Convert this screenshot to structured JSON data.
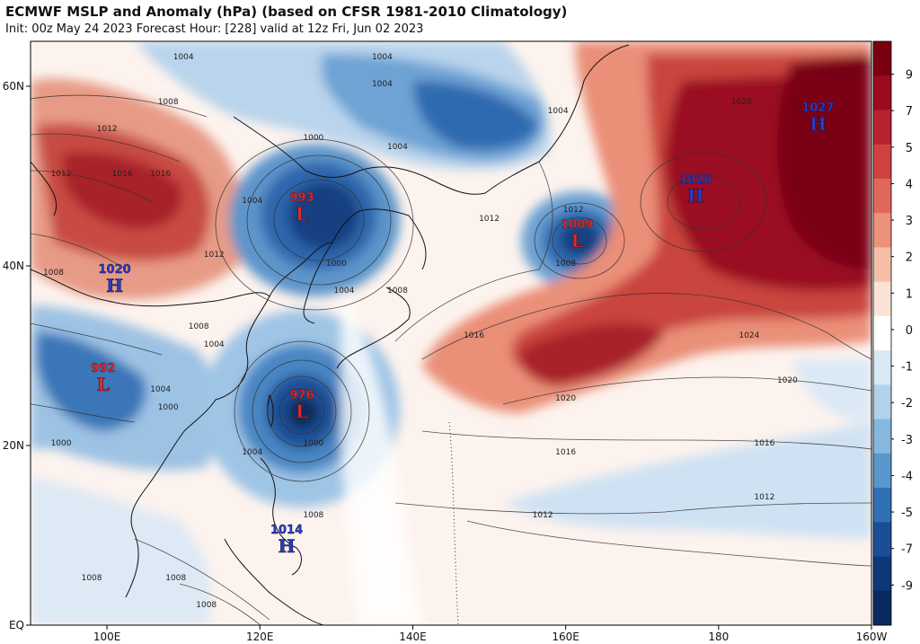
{
  "header": {
    "title": "ECMWF MSLP and Anomaly (hPa) (based on CFSR 1981-2010 Climatology)",
    "subtitle": "Init: 00z May 24 2023   Forecast Hour: [228]   valid at 12z Fri, Jun 02 2023"
  },
  "axes": {
    "lat_labels": [
      "60N",
      "40N",
      "20N",
      "EQ"
    ],
    "lat_values": [
      60,
      40,
      20,
      0
    ],
    "lon_labels": [
      "100E",
      "120E",
      "140E",
      "160E",
      "180",
      "160W"
    ],
    "lon_values": [
      100,
      120,
      140,
      160,
      180,
      200
    ],
    "lon_range": [
      90,
      200
    ],
    "lat_range": [
      0,
      65
    ]
  },
  "colorbar": {
    "labels": [
      "9",
      "7",
      "5",
      "4",
      "3",
      "2",
      "1",
      "0",
      "-1",
      "-2",
      "-3",
      "-4",
      "-5",
      "-7",
      "-9"
    ],
    "colors": [
      "#7a0012",
      "#9b0a1e",
      "#b8222e",
      "#cf4240",
      "#e0685a",
      "#ec9279",
      "#f5bea6",
      "#fbe2d6",
      "#ffffff",
      "#d9e8f5",
      "#b3d1ea",
      "#86b7de",
      "#5896cc",
      "#3170b5",
      "#1a4f96",
      "#0e3878",
      "#082a60"
    ]
  },
  "pressure_systems": [
    {
      "type": "L",
      "value": "993",
      "lon": 125.5,
      "lat": 46
    },
    {
      "type": "L",
      "value": "976",
      "lon": 125.5,
      "lat": 24
    },
    {
      "type": "L",
      "value": "992",
      "lon": 99.5,
      "lat": 27
    },
    {
      "type": "L",
      "value": "1009",
      "lon": 161.5,
      "lat": 43
    },
    {
      "type": "H",
      "value": "1020",
      "lon": 101,
      "lat": 38
    },
    {
      "type": "H",
      "value": "1014",
      "lon": 123.5,
      "lat": 9
    },
    {
      "type": "H",
      "value": "1026",
      "lon": 177,
      "lat": 48
    },
    {
      "type": "H",
      "value": "1027",
      "lon": 193,
      "lat": 56
    }
  ],
  "isobar_labels": [
    {
      "text": "1004",
      "lon": 110,
      "lat": 63
    },
    {
      "text": "1008",
      "lon": 108,
      "lat": 58
    },
    {
      "text": "1012",
      "lon": 100,
      "lat": 55
    },
    {
      "text": "1016",
      "lon": 102,
      "lat": 50
    },
    {
      "text": "1016",
      "lon": 107,
      "lat": 50
    },
    {
      "text": "1012",
      "lon": 94,
      "lat": 50
    },
    {
      "text": "1012",
      "lon": 114,
      "lat": 41
    },
    {
      "text": "1008",
      "lon": 93,
      "lat": 39
    },
    {
      "text": "1008",
      "lon": 112,
      "lat": 33
    },
    {
      "text": "1004",
      "lon": 114,
      "lat": 31
    },
    {
      "text": "1004",
      "lon": 107,
      "lat": 26
    },
    {
      "text": "1000",
      "lon": 108,
      "lat": 24
    },
    {
      "text": "1000",
      "lon": 94,
      "lat": 20
    },
    {
      "text": "1004",
      "lon": 119,
      "lat": 47
    },
    {
      "text": "1000",
      "lon": 127,
      "lat": 54
    },
    {
      "text": "1004",
      "lon": 136,
      "lat": 63
    },
    {
      "text": "1004",
      "lon": 136,
      "lat": 60
    },
    {
      "text": "1004",
      "lon": 138,
      "lat": 53
    },
    {
      "text": "1004",
      "lon": 159,
      "lat": 57
    },
    {
      "text": "1000",
      "lon": 130,
      "lat": 40
    },
    {
      "text": "1004",
      "lon": 131,
      "lat": 37
    },
    {
      "text": "1008",
      "lon": 138,
      "lat": 37
    },
    {
      "text": "1012",
      "lon": 150,
      "lat": 45
    },
    {
      "text": "1012",
      "lon": 161,
      "lat": 46
    },
    {
      "text": "1008",
      "lon": 160,
      "lat": 40
    },
    {
      "text": "1016",
      "lon": 148,
      "lat": 32
    },
    {
      "text": "1020",
      "lon": 160,
      "lat": 25
    },
    {
      "text": "1024",
      "lon": 184,
      "lat": 32
    },
    {
      "text": "1020",
      "lon": 183,
      "lat": 58
    },
    {
      "text": "1020",
      "lon": 189,
      "lat": 27
    },
    {
      "text": "1016",
      "lon": 160,
      "lat": 19
    },
    {
      "text": "1016",
      "lon": 186,
      "lat": 20
    },
    {
      "text": "1012",
      "lon": 186,
      "lat": 14
    },
    {
      "text": "1012",
      "lon": 157,
      "lat": 12
    },
    {
      "text": "1004",
      "lon": 119,
      "lat": 19
    },
    {
      "text": "1000",
      "lon": 127,
      "lat": 20
    },
    {
      "text": "1008",
      "lon": 127,
      "lat": 12
    },
    {
      "text": "1008",
      "lon": 109,
      "lat": 5
    },
    {
      "text": "1008",
      "lon": 98,
      "lat": 5
    },
    {
      "text": "1008",
      "lon": 113,
      "lat": 2
    }
  ]
}
